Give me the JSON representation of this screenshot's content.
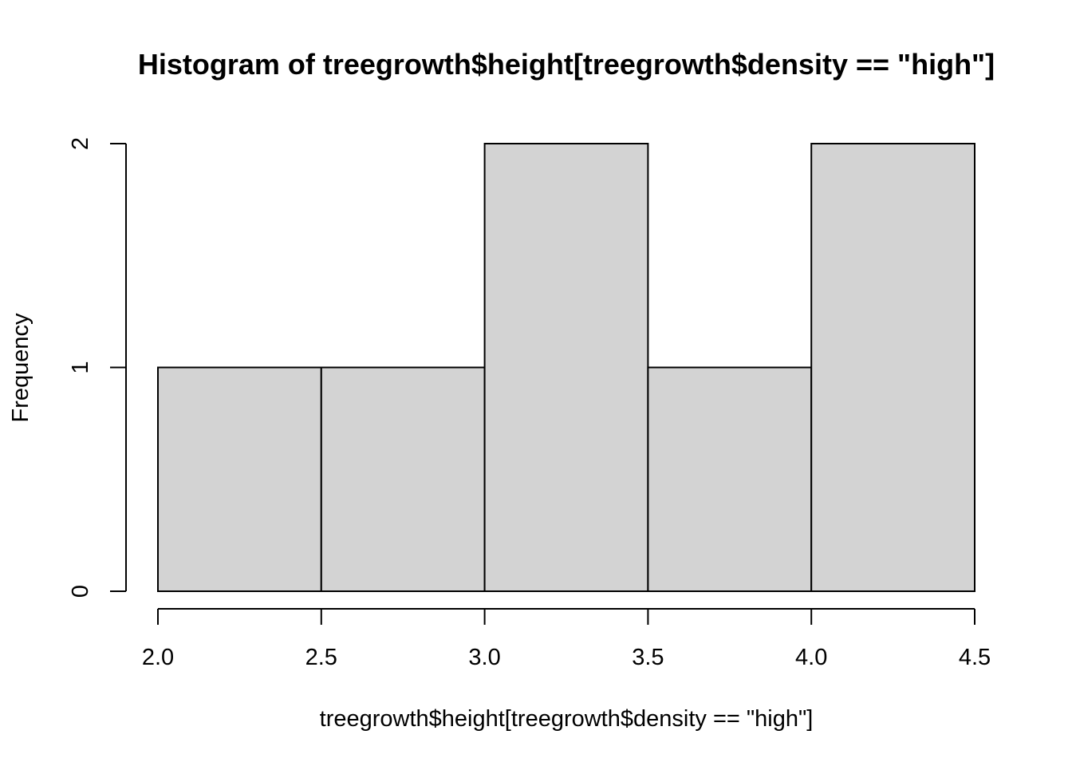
{
  "chart_data": {
    "type": "bar",
    "title": "Histogram of treegrowth$height[treegrowth$density == \"high\"]",
    "xlabel": "treegrowth$height[treegrowth$density == \"high\"]",
    "ylabel": "Frequency",
    "bins": [
      {
        "x0": 2.0,
        "x1": 2.5,
        "count": 1
      },
      {
        "x0": 2.5,
        "x1": 3.0,
        "count": 1
      },
      {
        "x0": 3.0,
        "x1": 3.5,
        "count": 2
      },
      {
        "x0": 3.5,
        "x1": 4.0,
        "count": 1
      },
      {
        "x0": 4.0,
        "x1": 4.5,
        "count": 2
      }
    ],
    "xlim": [
      2.0,
      4.5
    ],
    "ylim": [
      0,
      2
    ],
    "xticks": [
      "2.0",
      "2.5",
      "3.0",
      "3.5",
      "4.0",
      "4.5"
    ],
    "yticks": [
      "0",
      "1",
      "2"
    ],
    "bar_color": "#d3d3d3",
    "grid": false,
    "legend": "none"
  }
}
